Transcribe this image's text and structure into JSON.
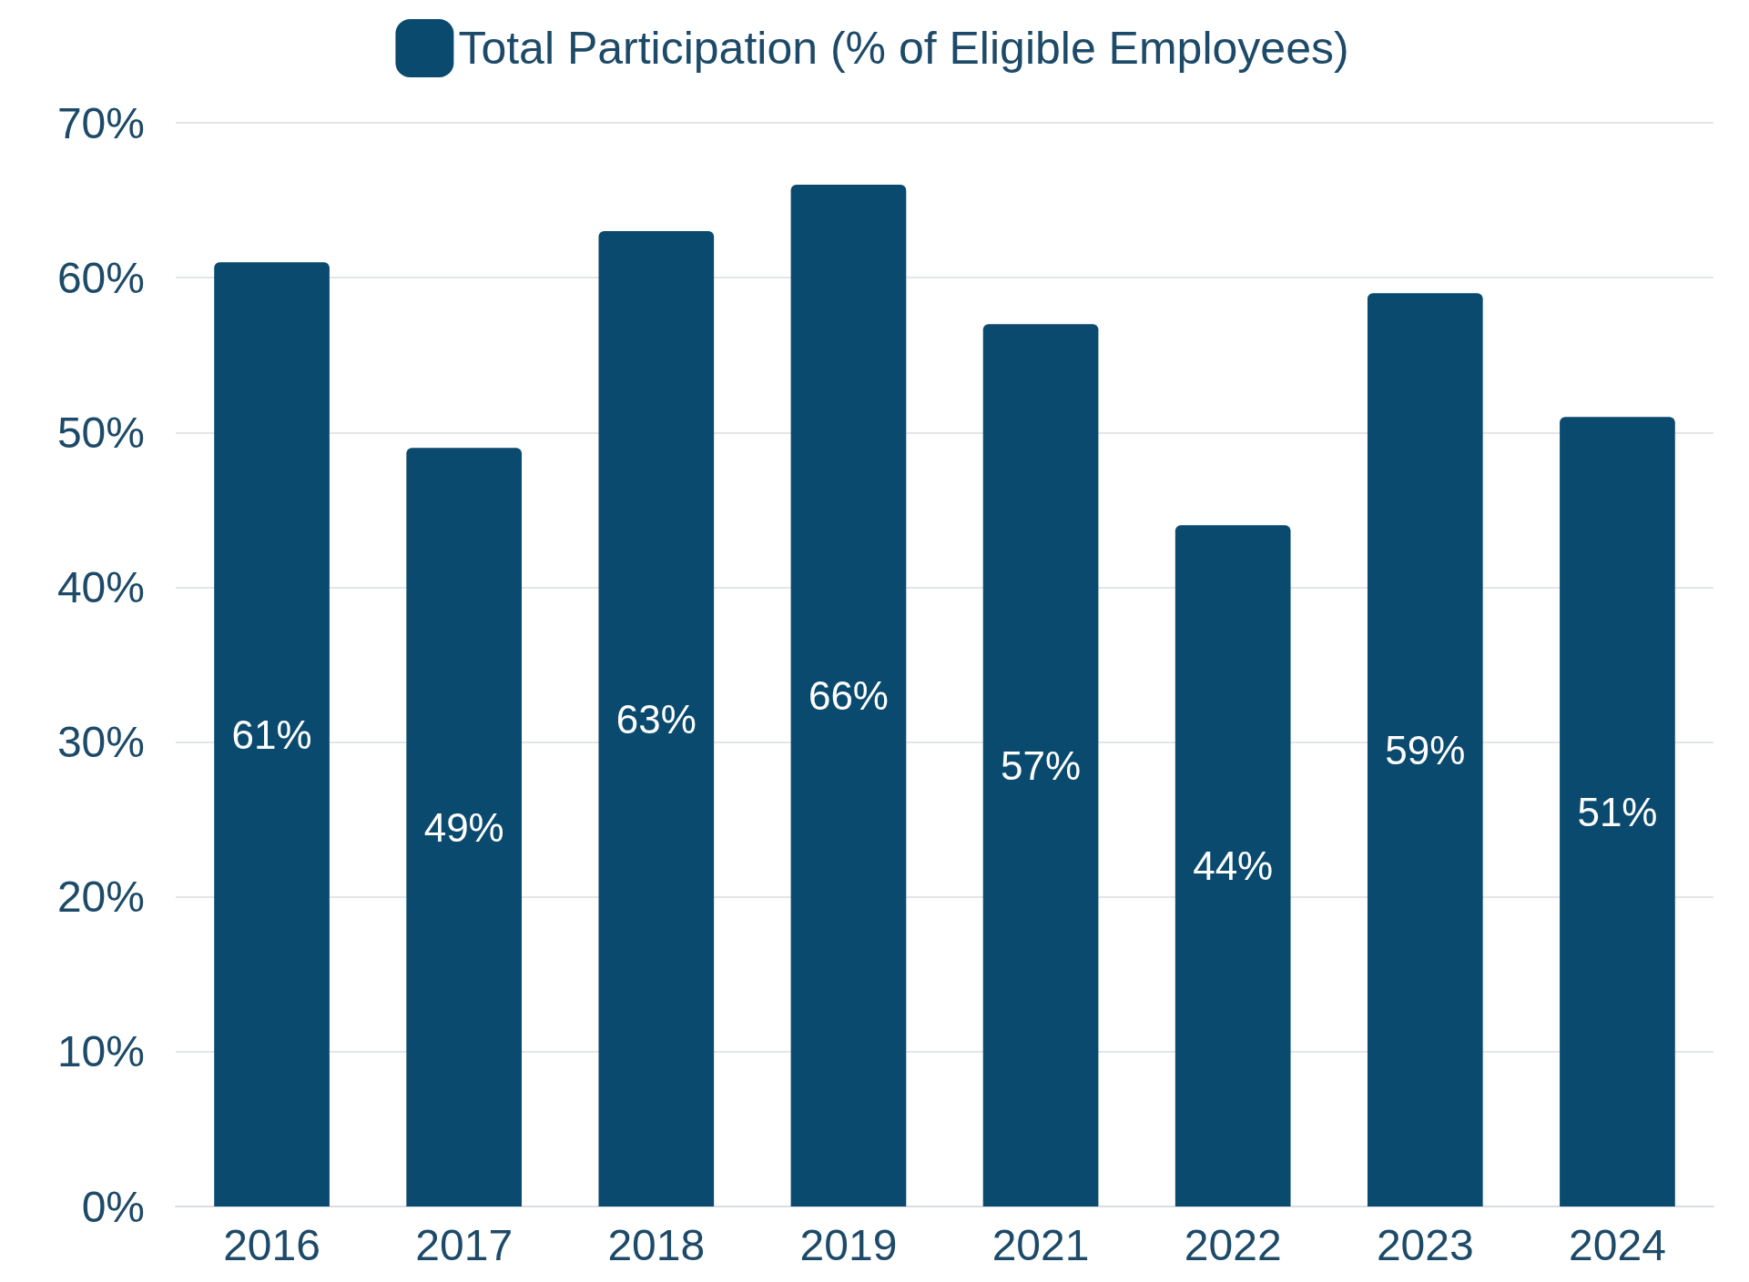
{
  "chart_data": {
    "type": "bar",
    "categories": [
      "2016",
      "2017",
      "2018",
      "2019",
      "2021",
      "2022",
      "2023",
      "2024"
    ],
    "series": [
      {
        "name": "Total Participation (% of Eligible Employees)",
        "color": "#0b4a6f",
        "values": [
          61,
          49,
          63,
          66,
          57,
          44,
          59,
          51
        ],
        "value_labels": [
          "61%",
          "49%",
          "63%",
          "66%",
          "57%",
          "44%",
          "59%",
          "51%"
        ]
      }
    ],
    "ylim": [
      0,
      70
    ],
    "yticks": [
      {
        "value": 0,
        "label": "0%"
      },
      {
        "value": 10,
        "label": "10%"
      },
      {
        "value": 20,
        "label": "20%"
      },
      {
        "value": 30,
        "label": "30%"
      },
      {
        "value": 40,
        "label": "40%"
      },
      {
        "value": 50,
        "label": "50%"
      },
      {
        "value": 60,
        "label": "60%"
      },
      {
        "value": 70,
        "label": "70%"
      }
    ],
    "grid": "y",
    "legend": "top"
  }
}
